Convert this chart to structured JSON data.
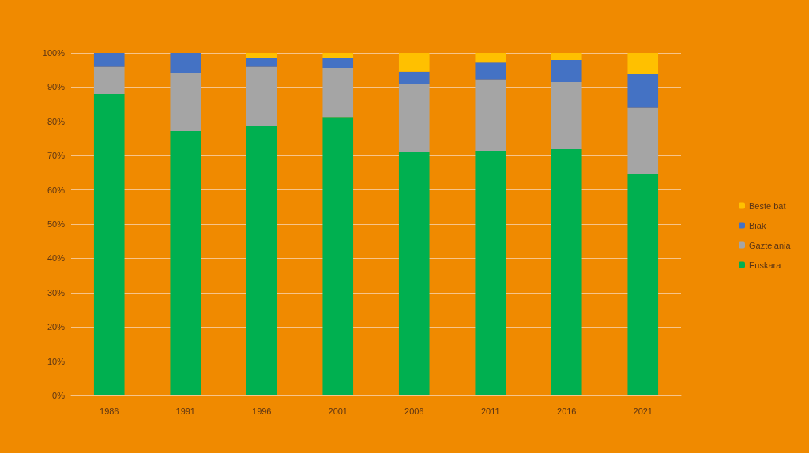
{
  "chart_data": {
    "type": "bar",
    "stacked": true,
    "categories": [
      "1986",
      "1991",
      "1996",
      "2001",
      "2006",
      "2011",
      "2016",
      "2021"
    ],
    "series": [
      {
        "name": "Euskara",
        "color": "#00b050",
        "values": [
          88.0,
          77.2,
          78.6,
          81.3,
          71.2,
          71.4,
          71.9,
          64.5
        ]
      },
      {
        "name": "Gaztelania",
        "color": "#a5a5a5",
        "values": [
          7.9,
          16.8,
          17.3,
          14.3,
          19.8,
          20.8,
          19.6,
          19.4
        ]
      },
      {
        "name": "Biak",
        "color": "#4472c4",
        "values": [
          4.1,
          6.0,
          2.5,
          3.0,
          3.5,
          5.0,
          6.4,
          9.9
        ]
      },
      {
        "name": "Beste bat",
        "color": "#ffc000",
        "values": [
          0,
          0,
          1.6,
          1.4,
          5.5,
          2.8,
          2.1,
          6.2
        ]
      }
    ],
    "ylim": [
      0,
      100
    ],
    "yticks": [
      {
        "value": 0,
        "label": "0%"
      },
      {
        "value": 10,
        "label": "10%"
      },
      {
        "value": 20,
        "label": "20%"
      },
      {
        "value": 30,
        "label": "30%"
      },
      {
        "value": 40,
        "label": "40%"
      },
      {
        "value": 50,
        "label": "50%"
      },
      {
        "value": 60,
        "label": "60%"
      },
      {
        "value": 70,
        "label": "70%"
      },
      {
        "value": 80,
        "label": "80%"
      },
      {
        "value": 90,
        "label": "90%"
      },
      {
        "value": 100,
        "label": "100%"
      }
    ],
    "grid": "y",
    "legend": "right"
  }
}
